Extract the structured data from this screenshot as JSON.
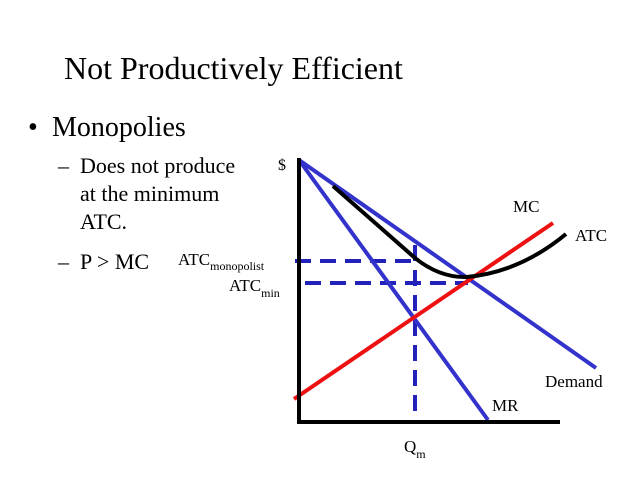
{
  "slide": {
    "title": "Not Productively Efficient",
    "bullet": "Monopolies",
    "sub_bullets": [
      "Does not produce at the minimum ATC.",
      "P > MC"
    ]
  },
  "diagram": {
    "y_axis_label": "$",
    "curves": {
      "mc": "MC",
      "atc": "ATC",
      "demand": "Demand",
      "mr": "MR"
    },
    "levels": {
      "atc_monopolist": {
        "base": "ATC",
        "subscript": "monopolist"
      },
      "atc_min": {
        "base": "ATC",
        "subscript": "min"
      }
    },
    "x_marker": {
      "base": "Q",
      "subscript": "m"
    },
    "colors": {
      "demand_mr": "#3333cc",
      "mc": "#ee1111",
      "atc": "#000000",
      "dashed_guides": "#2222bb",
      "axes": "#000000"
    }
  }
}
